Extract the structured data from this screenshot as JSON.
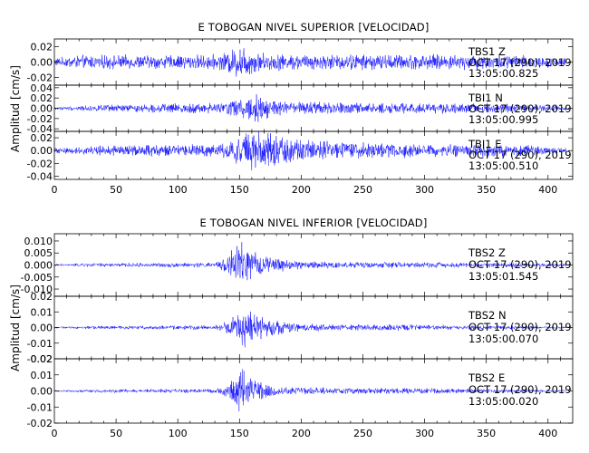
{
  "chart_data": [
    {
      "type": "line",
      "title": "E TOBOGAN NIVEL SUPERIOR [VELOCIDAD]",
      "ylabel": "Amplitud [cm/s]",
      "xlim": [
        0,
        420
      ],
      "x_ticks": [
        "0",
        "50",
        "100",
        "150",
        "200",
        "250",
        "300",
        "350",
        "400"
      ],
      "line_color": "#0000ff",
      "traces": [
        {
          "station": "TBS1 Z",
          "date": "OCT 17 (290), 2019",
          "time": "13:05:00.825",
          "ylim": [
            -0.03,
            0.03
          ],
          "y_ticks": [
            "0.02",
            "0.00",
            "-0.02"
          ],
          "y_tick_values": [
            0.02,
            0.0,
            -0.02
          ],
          "envelope": {
            "time": [
              0,
              20,
              100,
              135,
              140,
              148,
              152,
              160,
              175,
              200,
              300,
              380,
              415
            ],
            "amplitude": [
              0.005,
              0.009,
              0.009,
              0.01,
              0.014,
              0.02,
              0.024,
              0.015,
              0.011,
              0.01,
              0.01,
              0.009,
              0.005
            ]
          }
        },
        {
          "station": "TBI1 N",
          "date": "OCT 17 (290), 2019",
          "time": "13:05:00.995",
          "ylim": [
            -0.045,
            0.045
          ],
          "y_ticks": [
            "0.04",
            "0.02",
            "0.00",
            "-0.02",
            "-0.04"
          ],
          "y_tick_values": [
            0.04,
            0.02,
            0.0,
            -0.02,
            -0.04
          ],
          "envelope": {
            "time": [
              0,
              30,
              80,
              110,
              140,
              150,
              158,
              165,
              180,
              200,
              260,
              320,
              360,
              415
            ],
            "amplitude": [
              0.003,
              0.006,
              0.008,
              0.009,
              0.012,
              0.022,
              0.034,
              0.028,
              0.016,
              0.012,
              0.01,
              0.01,
              0.01,
              0.004
            ]
          }
        },
        {
          "station": "TBI1 E",
          "date": "OCT 17 (290), 2019",
          "time": "13:05:00.510",
          "ylim": [
            -0.045,
            0.03
          ],
          "y_ticks": [
            "0.02",
            "0.00",
            "-0.02",
            "-0.04"
          ],
          "y_tick_values": [
            0.02,
            0.0,
            -0.02,
            -0.04
          ],
          "envelope": {
            "time": [
              0,
              40,
              100,
              135,
              145,
              155,
              165,
              180,
              200,
              230,
              260,
              320,
              380,
              415
            ],
            "amplitude": [
              0.004,
              0.008,
              0.009,
              0.01,
              0.018,
              0.03,
              0.032,
              0.022,
              0.018,
              0.014,
              0.012,
              0.01,
              0.009,
              0.004
            ]
          }
        }
      ]
    },
    {
      "type": "line",
      "title": "E TOBOGAN NIVEL INFERIOR [VELOCIDAD]",
      "ylabel": "Amplitud [cm/s]",
      "xlim": [
        0,
        420
      ],
      "x_ticks": [
        "0",
        "50",
        "100",
        "150",
        "200",
        "250",
        "300",
        "350",
        "400"
      ],
      "line_color": "#0000ff",
      "traces": [
        {
          "station": "TBS2 Z",
          "date": "OCT 17 (290), 2019",
          "time": "13:05:01.545",
          "ylim": [
            -0.013,
            0.013
          ],
          "y_ticks": [
            "0.010",
            "0.005",
            "0.000",
            "-0.005",
            "-0.010"
          ],
          "y_tick_values": [
            0.01,
            0.005,
            0.0,
            -0.005,
            -0.01
          ],
          "envelope": {
            "time": [
              0,
              30,
              130,
              138,
              145,
              150,
              158,
              170,
              190,
              220,
              300,
              415
            ],
            "amplitude": [
              0.0004,
              0.0008,
              0.001,
              0.003,
              0.007,
              0.011,
              0.006,
              0.004,
              0.002,
              0.0014,
              0.0012,
              0.0006
            ]
          }
        },
        {
          "station": "TBS2 N",
          "date": "OCT 17 (290), 2019",
          "time": "13:05:00.070",
          "ylim": [
            -0.02,
            0.02
          ],
          "y_ticks": [
            "0.02",
            "0.01",
            "0.00",
            "-0.01",
            "-0.02"
          ],
          "y_tick_values": [
            0.02,
            0.01,
            0.0,
            -0.01,
            -0.02
          ],
          "envelope": {
            "time": [
              0,
              30,
              130,
              140,
              148,
              153,
              160,
              175,
              195,
              230,
              300,
              415
            ],
            "amplitude": [
              0.0005,
              0.001,
              0.0015,
              0.004,
              0.009,
              0.014,
              0.009,
              0.005,
              0.003,
              0.002,
              0.0018,
              0.0007
            ]
          }
        },
        {
          "station": "TBS2 E",
          "date": "OCT 17 (290), 2019",
          "time": "13:05:00.020",
          "ylim": [
            -0.02,
            0.02
          ],
          "y_ticks": [
            "0.02",
            "0.01",
            "0.00",
            "-0.01",
            "-0.02"
          ],
          "y_tick_values": [
            0.02,
            0.01,
            0.0,
            -0.01,
            -0.02
          ],
          "envelope": {
            "time": [
              0,
              30,
              130,
              140,
              146,
              150,
              155,
              165,
              180,
              210,
              300,
              415
            ],
            "amplitude": [
              0.0005,
              0.001,
              0.0014,
              0.004,
              0.01,
              0.018,
              0.01,
              0.006,
              0.003,
              0.002,
              0.0018,
              0.0006
            ]
          }
        }
      ]
    }
  ]
}
